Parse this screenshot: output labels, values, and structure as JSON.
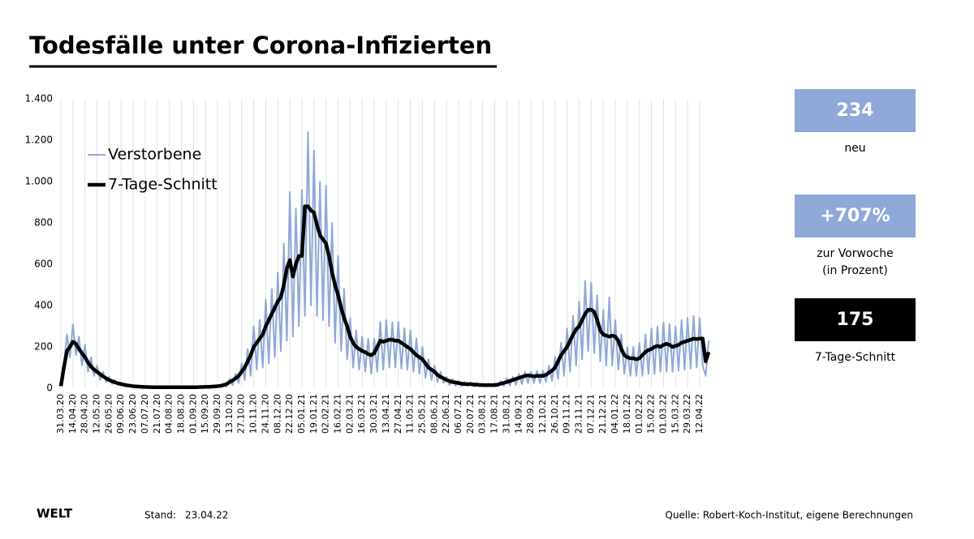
{
  "chart_data": {
    "type": "line",
    "title": "Todesfälle unter Corona-Infizierten",
    "categories": [
      "31.03.20",
      null,
      null,
      null,
      "14.04.20",
      null,
      null,
      null,
      "28.04.20",
      null,
      null,
      null,
      "12.05.20",
      null,
      null,
      null,
      "26.05.20",
      null,
      null,
      null,
      "09.06.20",
      null,
      null,
      null,
      "23.06.20",
      null,
      null,
      null,
      "07.07.20",
      null,
      null,
      null,
      "21.07.20",
      null,
      null,
      null,
      "04.08.20",
      null,
      null,
      null,
      "18.08.20",
      null,
      null,
      null,
      "01.09.20",
      null,
      null,
      null,
      "15.09.20",
      null,
      null,
      null,
      "29.09.20",
      null,
      null,
      null,
      "13.10.20",
      null,
      null,
      null,
      "27.10.20",
      null,
      null,
      null,
      "10.11.20",
      null,
      null,
      null,
      "24.11.20",
      null,
      null,
      null,
      "08.12.20",
      null,
      null,
      null,
      "22.12.20",
      null,
      null,
      null,
      "05.01.21",
      null,
      null,
      null,
      "19.01.21",
      null,
      null,
      null,
      "02.02.21",
      null,
      null,
      null,
      "16.02.21",
      null,
      null,
      null,
      "02.03.21",
      null,
      null,
      null,
      "16.03.21",
      null,
      null,
      null,
      "30.03.21",
      null,
      null,
      null,
      "13.04.21",
      null,
      null,
      null,
      "27.04.21",
      null,
      null,
      null,
      "11.05.21",
      null,
      null,
      null,
      "25.05.21",
      null,
      null,
      null,
      "08.06.21",
      null,
      null,
      null,
      "22.06.21",
      null,
      null,
      null,
      "06.07.21",
      null,
      null,
      null,
      "20.07.21",
      null,
      null,
      null,
      "03.08.21",
      null,
      null,
      null,
      "17.08.21",
      null,
      null,
      null,
      "31.08.21",
      null,
      null,
      null,
      "14.09.21",
      null,
      null,
      null,
      "28.09.21",
      null,
      null,
      null,
      "12.10.21",
      null,
      null,
      null,
      "26.10.21",
      null,
      null,
      null,
      "09.11.21",
      null,
      null,
      null,
      "23.11.21",
      null,
      null,
      null,
      "07.12.21",
      null,
      null,
      null,
      "21.12.21",
      null,
      null,
      null,
      "04.01.22",
      null,
      null,
      null,
      "18.01.22",
      null,
      null,
      null,
      "01.02.22",
      null,
      null,
      null,
      "15.02.22",
      null,
      null,
      null,
      "01.03.22",
      null,
      null,
      null,
      "15.03.22",
      null,
      null,
      null,
      "29.03.22",
      null,
      null,
      null,
      "12.04.22",
      null,
      null,
      null
    ],
    "series": [
      {
        "name": "Verstorbene",
        "color": "#8fa8d8",
        "width": 2,
        "values": [
          20,
          110,
          260,
          150,
          310,
          160,
          250,
          110,
          210,
          80,
          150,
          60,
          110,
          40,
          80,
          30,
          55,
          20,
          40,
          15,
          28,
          10,
          20,
          8,
          14,
          4,
          12,
          3,
          9,
          3,
          8,
          2,
          8,
          2,
          8,
          2,
          8,
          2,
          8,
          2,
          8,
          2,
          8,
          2,
          8,
          2,
          9,
          3,
          10,
          3,
          12,
          4,
          15,
          5,
          22,
          8,
          45,
          15,
          70,
          25,
          120,
          40,
          190,
          60,
          300,
          90,
          330,
          100,
          430,
          120,
          480,
          150,
          560,
          180,
          700,
          230,
          950,
          250,
          870,
          300,
          960,
          350,
          1240,
          400,
          1150,
          350,
          1000,
          330,
          980,
          300,
          800,
          220,
          640,
          180,
          480,
          140,
          340,
          100,
          280,
          90,
          250,
          80,
          240,
          70,
          240,
          80,
          320,
          90,
          330,
          100,
          320,
          100,
          320,
          95,
          290,
          90,
          280,
          80,
          240,
          70,
          200,
          50,
          140,
          40,
          110,
          30,
          80,
          25,
          55,
          15,
          45,
          12,
          35,
          10,
          30,
          10,
          28,
          8,
          25,
          8,
          22,
          8,
          22,
          8,
          25,
          8,
          35,
          10,
          50,
          12,
          55,
          15,
          70,
          20,
          80,
          25,
          80,
          25,
          85,
          25,
          85,
          30,
          110,
          35,
          150,
          45,
          220,
          60,
          290,
          80,
          350,
          110,
          420,
          140,
          520,
          180,
          510,
          170,
          450,
          130,
          380,
          110,
          440,
          110,
          330,
          90,
          260,
          70,
          200,
          60,
          200,
          60,
          220,
          60,
          260,
          70,
          290,
          70,
          300,
          80,
          320,
          80,
          310,
          80,
          300,
          85,
          330,
          90,
          340,
          95,
          350,
          100,
          340,
          110,
          60,
          230
        ]
      },
      {
        "name": "7-Tage-Schnitt",
        "color": "#000000",
        "width": 4.5,
        "values": [
          10,
          100,
          180,
          200,
          225,
          215,
          190,
          170,
          150,
          125,
          105,
          90,
          80,
          68,
          58,
          48,
          40,
          34,
          28,
          24,
          20,
          17,
          14,
          12,
          10,
          9,
          8,
          7,
          6,
          6,
          5,
          5,
          5,
          5,
          5,
          5,
          5,
          5,
          5,
          5,
          5,
          5,
          5,
          5,
          5,
          5,
          6,
          6,
          7,
          7,
          8,
          9,
          10,
          12,
          15,
          20,
          30,
          38,
          48,
          60,
          80,
          100,
          130,
          160,
          200,
          220,
          240,
          260,
          300,
          330,
          360,
          390,
          420,
          440,
          500,
          580,
          620,
          540,
          600,
          640,
          640,
          880,
          880,
          860,
          850,
          790,
          740,
          720,
          700,
          640,
          560,
          500,
          450,
          390,
          340,
          300,
          250,
          220,
          200,
          190,
          180,
          175,
          165,
          160,
          170,
          200,
          230,
          225,
          230,
          235,
          235,
          230,
          230,
          220,
          210,
          200,
          190,
          175,
          160,
          150,
          140,
          120,
          100,
          90,
          80,
          65,
          55,
          48,
          40,
          35,
          30,
          28,
          25,
          22,
          20,
          20,
          20,
          18,
          17,
          16,
          15,
          15,
          15,
          15,
          15,
          18,
          22,
          26,
          30,
          35,
          40,
          45,
          50,
          55,
          60,
          62,
          60,
          58,
          60,
          60,
          60,
          65,
          75,
          85,
          100,
          130,
          160,
          180,
          200,
          230,
          260,
          285,
          300,
          330,
          360,
          380,
          380,
          370,
          330,
          280,
          260,
          255,
          250,
          255,
          250,
          230,
          190,
          160,
          150,
          145,
          145,
          140,
          145,
          160,
          175,
          185,
          190,
          200,
          205,
          200,
          210,
          215,
          210,
          200,
          205,
          210,
          220,
          225,
          230,
          235,
          240,
          238,
          240,
          240,
          130,
          175
        ]
      }
    ],
    "ylim": [
      0,
      1400
    ],
    "yticks": [
      0,
      200,
      400,
      600,
      800,
      {
        "value": 1000,
        "label": "1.000"
      },
      {
        "value": 1200,
        "label": "1.200"
      },
      {
        "value": 1400,
        "label": "1.400"
      }
    ],
    "grid": "x",
    "legend": "top-left"
  },
  "kpis": [
    {
      "value": 234,
      "color": "#8fa8d8",
      "label": [
        "neu"
      ]
    },
    {
      "value": "+707%",
      "color": "#8fa8d8",
      "label": [
        "zur Vorwoche",
        "(in Prozent)"
      ]
    },
    {
      "value": 175,
      "color": "#000000",
      "label": [
        "7-Tage-Schnitt"
      ]
    }
  ],
  "footer": {
    "brand": "WELT",
    "stand_label": "Stand:",
    "stand_date": "23.04.22",
    "source": "Quelle: Robert-Koch-Institut, eigene Berechnungen"
  }
}
